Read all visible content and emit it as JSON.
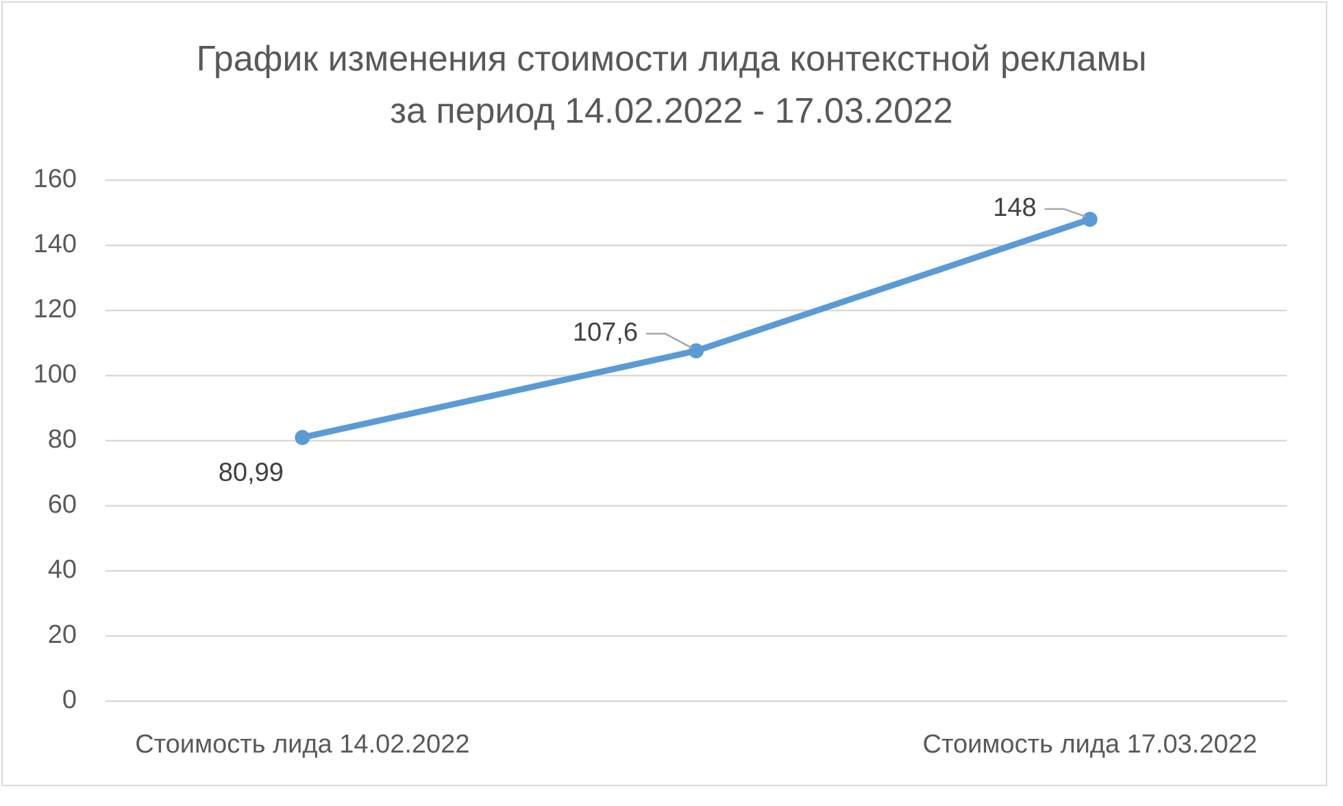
{
  "chart_data": {
    "type": "line",
    "title": "График изменения стоимости лида контекстной рекламы за период 14.02.2022 - 17.03.2022",
    "categories": [
      "Стоимость лида 14.02.2022",
      null,
      "Стоимость лида 17.03.2022"
    ],
    "series": [
      {
        "color": "#5b9bd5",
        "values": [
          80.99,
          107.6,
          148
        ],
        "value_labels": [
          "80,99",
          "107,6",
          "148"
        ]
      }
    ],
    "ylim": [
      0,
      160
    ],
    "yticks": [
      0,
      20,
      40,
      60,
      80,
      100,
      120,
      140,
      160
    ],
    "grid": true
  }
}
